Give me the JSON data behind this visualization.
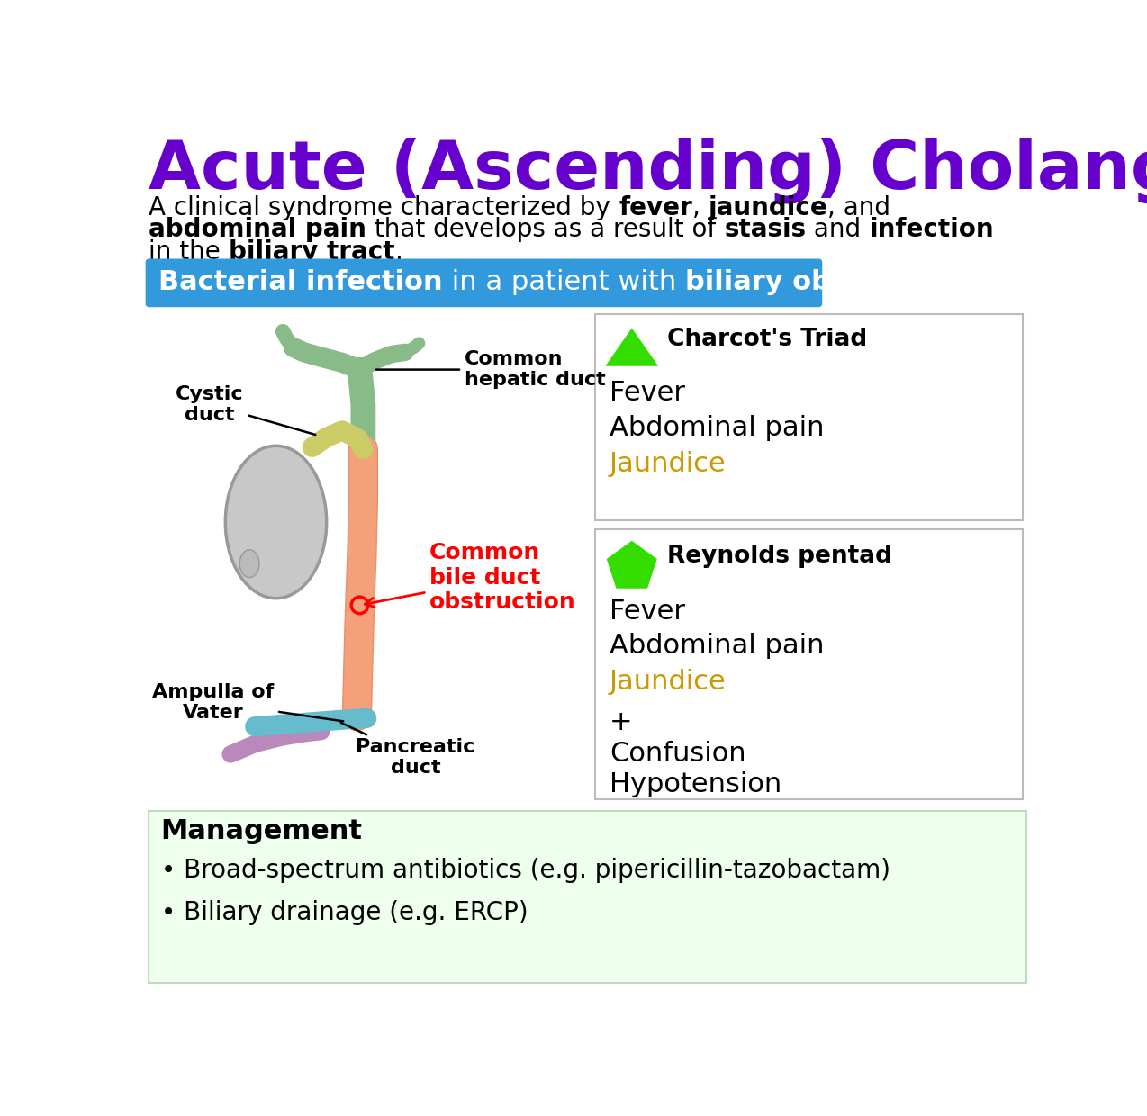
{
  "title": "Acute (Ascending) Cholangitis",
  "title_color": "#6600cc",
  "banner_bg": "#3399dd",
  "charcot_title": "Charcot's Triad",
  "charcot_items": [
    "Fever",
    "Abdominal pain",
    "Jaundice"
  ],
  "jaundice_color": "#cc9900",
  "reynolds_title": "Reynolds pentad",
  "reynolds_items": [
    "Fever",
    "Abdominal pain",
    "Jaundice",
    "+",
    "Confusion",
    "Hypotension"
  ],
  "green_color": "#33dd00",
  "management_title": "Management",
  "management_bg": "#eeffee",
  "management_items": [
    "Broad-spectrum antibiotics (e.g. pipericillin-tazobactam)",
    "Biliary drainage (e.g. ERCP)"
  ],
  "bg_color": "#ffffff",
  "obstruction_color": "#ff0000",
  "gb_color": "#c8c8c8",
  "gb_edge": "#888888",
  "cbd_color": "#f4a07a",
  "chd_color": "#88bb88",
  "cystic_color": "#cccc66",
  "pd_color": "#66bbcc",
  "purple_duct_color": "#bb88bb"
}
